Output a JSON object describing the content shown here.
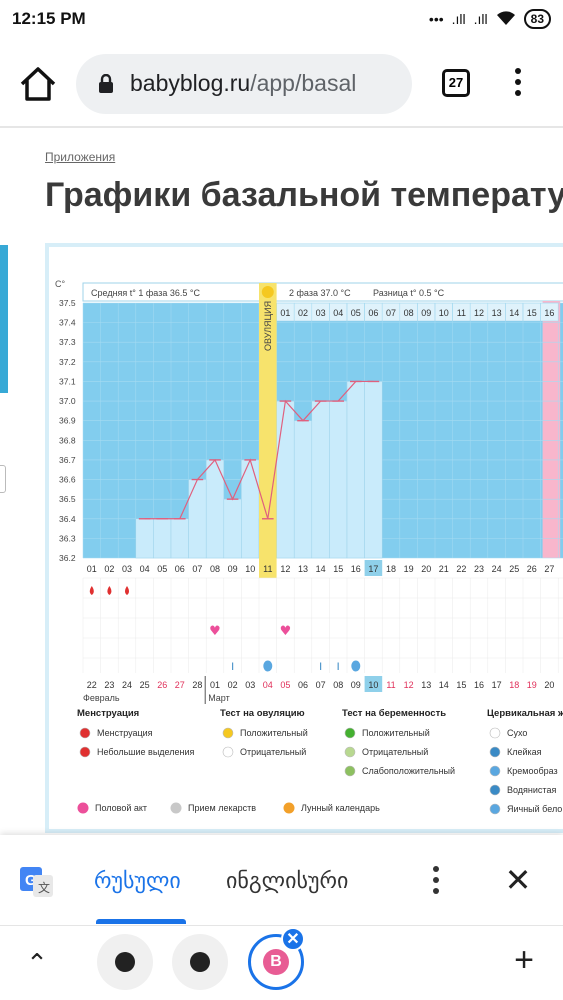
{
  "status_bar": {
    "time": "12:15 PM",
    "signal1": ".ıll",
    "signal2": ".ıll",
    "battery": "83"
  },
  "browser": {
    "url_domain": "babyblog.ru",
    "url_path": "/app/basal",
    "tab_count": "27",
    "icons": [
      "home-icon",
      "lock-icon",
      "tabs-icon",
      "more-icon"
    ]
  },
  "page": {
    "breadcrumb": "Приложения",
    "title": "Графики базальной температу"
  },
  "chart_data": {
    "type": "line",
    "y_unit": "C°",
    "ylim": [
      36.2,
      37.5
    ],
    "y_ticks": [
      "37.5",
      "37.4",
      "37.3",
      "37.2",
      "37.1",
      "37.0",
      "36.9",
      "36.8",
      "36.7",
      "36.6",
      "36.5",
      "36.4",
      "36.3",
      "36.2"
    ],
    "phase1_label": "Средняя t° 1 фаза",
    "phase1_value": "36.5 °С",
    "phase2_label": "2 фаза",
    "phase2_value": "37.0 °С",
    "diff_label": "Разница t°",
    "diff_value": "0.5 °С",
    "ovulation_label": "ОВУЛЯЦИЯ",
    "ovulation_day": 11,
    "phase2_days": [
      "01",
      "02",
      "03",
      "04",
      "05",
      "06",
      "07",
      "08",
      "09",
      "10",
      "11",
      "12",
      "13",
      "14",
      "15",
      "16"
    ],
    "cycle_days": [
      "01",
      "02",
      "03",
      "04",
      "05",
      "06",
      "07",
      "08",
      "09",
      "10",
      "11",
      "12",
      "13",
      "14",
      "15",
      "16",
      "17",
      "18",
      "19",
      "20",
      "21",
      "22",
      "23",
      "24",
      "25",
      "26",
      "27"
    ],
    "current_day": "17",
    "temperatures": [
      null,
      null,
      null,
      36.4,
      36.4,
      36.4,
      36.6,
      36.7,
      36.5,
      36.7,
      36.4,
      37.0,
      36.9,
      37.0,
      37.0,
      37.1,
      37.1,
      null,
      null,
      null,
      null,
      null,
      null,
      null,
      null,
      null,
      null
    ],
    "menstruation_days": [
      1,
      2,
      3
    ],
    "intercourse_days": [
      8,
      12
    ],
    "cervical_days": [
      {
        "day": 9,
        "kind": "sticky"
      },
      {
        "day": 11,
        "kind": "egg-white"
      },
      {
        "day": 14,
        "kind": "sticky"
      },
      {
        "day": 15,
        "kind": "sticky"
      },
      {
        "day": 16,
        "kind": "egg-white"
      }
    ],
    "calendar_dates": [
      "22",
      "23",
      "24",
      "25",
      "26",
      "27",
      "28",
      "01",
      "02",
      "03",
      "04",
      "05",
      "06",
      "07",
      "08",
      "09",
      "10",
      "11",
      "12",
      "13",
      "14",
      "15",
      "16",
      "17",
      "18",
      "19",
      "20"
    ],
    "weekend_dates_index": [
      4,
      5,
      10,
      11,
      17,
      18,
      24,
      25
    ],
    "today_date_index": 16,
    "month_feb": "Февраль",
    "month_mar": "Март"
  },
  "legend": {
    "menstruation": {
      "title": "Менструация",
      "items": [
        "Менструация",
        "Небольшие выделения"
      ]
    },
    "ovulation_test": {
      "title": "Тест на овуляцию",
      "items": [
        "Положительный",
        "Отрицательный"
      ]
    },
    "pregnancy_test": {
      "title": "Тест на беременность",
      "items": [
        "Положительный",
        "Отрицательный",
        "Слабоположительный"
      ]
    },
    "cervical": {
      "title": "Цервикальная ж",
      "items": [
        "Сухо",
        "Клейкая",
        "Кремообраз",
        "Водянистая",
        "Яичный бело"
      ]
    },
    "bottom": [
      "Половой акт",
      "Прием лекарств",
      "Лунный календарь"
    ]
  },
  "colors": {
    "chart_bg": "#82cdee",
    "bar": "#c9ebfb",
    "ovulation": "#f7e36c",
    "pink_col": "#f8b6cc",
    "line": "#e0607e",
    "accent_blue": "#1a73e8"
  },
  "translate_bar": {
    "lang_source": "რუსული",
    "lang_target": "ინგლისური"
  }
}
